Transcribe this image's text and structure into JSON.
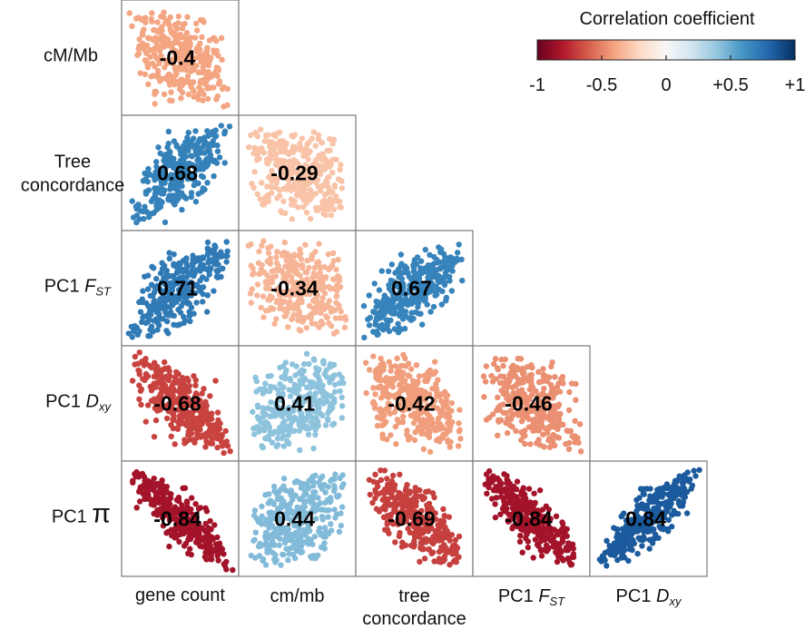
{
  "chart_data": {
    "type": "scatter",
    "variables_row": [
      "cM/Mb",
      "Tree\nconcordance",
      "PC1 F_ST",
      "PC1 D_xy",
      "PC1 π"
    ],
    "variables_col": [
      "gene count",
      "cm/mb",
      "tree\nconcordance",
      "PC1 F_ST",
      "PC1 D_xy"
    ],
    "row_labels": [
      {
        "main": "cM/Mb",
        "sub": ""
      },
      {
        "main": "Tree",
        "main2": "concordance",
        "sub": ""
      },
      {
        "main": "PC1 ",
        "italic": "F",
        "sub": "ST"
      },
      {
        "main": "PC1 ",
        "italic": "D",
        "sub": "xy"
      },
      {
        "main": "PC1 ",
        "big": "π",
        "sub": ""
      }
    ],
    "col_labels": [
      {
        "main": "gene count"
      },
      {
        "main": "cm/mb"
      },
      {
        "main": "tree",
        "main2": "concordance"
      },
      {
        "main": "PC1 ",
        "italic": "F",
        "sub": "ST"
      },
      {
        "main": "PC1 ",
        "italic": "D",
        "sub": "xy"
      }
    ],
    "cells": [
      {
        "row": 0,
        "col": 0,
        "r": "-0.4",
        "value": -0.4
      },
      {
        "row": 1,
        "col": 0,
        "r": "0.68",
        "value": 0.68
      },
      {
        "row": 1,
        "col": 1,
        "r": "-0.29",
        "value": -0.29
      },
      {
        "row": 2,
        "col": 0,
        "r": "0.71",
        "value": 0.71
      },
      {
        "row": 2,
        "col": 1,
        "r": "-0.34",
        "value": -0.34
      },
      {
        "row": 2,
        "col": 2,
        "r": "0.67",
        "value": 0.67
      },
      {
        "row": 3,
        "col": 0,
        "r": "-0.68",
        "value": -0.68
      },
      {
        "row": 3,
        "col": 1,
        "r": "0.41",
        "value": 0.41
      },
      {
        "row": 3,
        "col": 2,
        "r": "-0.42",
        "value": -0.42
      },
      {
        "row": 3,
        "col": 3,
        "r": "-0.46",
        "value": -0.46
      },
      {
        "row": 4,
        "col": 0,
        "r": "-0.84",
        "value": -0.84
      },
      {
        "row": 4,
        "col": 1,
        "r": "0.44",
        "value": 0.44
      },
      {
        "row": 4,
        "col": 2,
        "r": "-0.69",
        "value": -0.69
      },
      {
        "row": 4,
        "col": 3,
        "r": "-0.84",
        "value": -0.84
      },
      {
        "row": 4,
        "col": 4,
        "r": "0.84",
        "value": 0.84
      }
    ],
    "legend": {
      "title": "Correlation coefficient",
      "ticks": [
        "-1",
        "-0.5",
        "0",
        "+0.5",
        "+1"
      ],
      "tick_values": [
        -1,
        -0.5,
        0,
        0.5,
        1
      ],
      "placement": "top-right",
      "colors": [
        "#67001f",
        "#b2182b",
        "#d6604d",
        "#f4a582",
        "#fddbc7",
        "#f7f7f7",
        "#d1e5f0",
        "#92c5de",
        "#4393c3",
        "#2166ac",
        "#053061"
      ]
    },
    "grid": false
  }
}
